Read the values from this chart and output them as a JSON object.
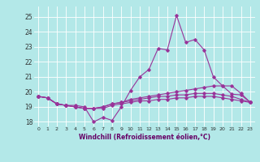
{
  "xlabel": "Windchill (Refroidissement éolien,°C)",
  "bg_color": "#b3e8e8",
  "grid_color": "#ffffff",
  "line_color": "#993399",
  "xlim": [
    -0.5,
    23.5
  ],
  "ylim": [
    17.7,
    25.7
  ],
  "yticks": [
    18,
    19,
    20,
    21,
    22,
    23,
    24,
    25
  ],
  "xticks": [
    0,
    1,
    2,
    3,
    4,
    5,
    6,
    7,
    8,
    9,
    10,
    11,
    12,
    13,
    14,
    15,
    16,
    17,
    18,
    19,
    20,
    21,
    22,
    23
  ],
  "line1": [
    19.7,
    19.6,
    19.2,
    19.1,
    19.1,
    19.0,
    18.0,
    18.3,
    18.1,
    19.0,
    20.1,
    21.0,
    21.5,
    22.9,
    22.8,
    25.1,
    23.3,
    23.5,
    22.8,
    21.0,
    20.4,
    19.85,
    19.8,
    19.3
  ],
  "line2": [
    19.7,
    19.6,
    19.2,
    19.1,
    19.0,
    18.9,
    18.9,
    19.0,
    19.2,
    19.3,
    19.5,
    19.6,
    19.7,
    19.8,
    19.9,
    20.0,
    20.1,
    20.2,
    20.3,
    20.4,
    20.4,
    20.4,
    19.9,
    19.3
  ],
  "line3": [
    19.7,
    19.6,
    19.2,
    19.1,
    19.0,
    18.9,
    18.9,
    19.0,
    19.2,
    19.3,
    19.4,
    19.5,
    19.6,
    19.7,
    19.7,
    19.8,
    19.8,
    19.9,
    19.9,
    19.9,
    19.8,
    19.7,
    19.5,
    19.3
  ],
  "line4": [
    19.7,
    19.6,
    19.2,
    19.1,
    19.0,
    18.9,
    18.9,
    18.9,
    19.1,
    19.2,
    19.3,
    19.4,
    19.4,
    19.5,
    19.5,
    19.6,
    19.6,
    19.7,
    19.7,
    19.7,
    19.6,
    19.5,
    19.4,
    19.3
  ]
}
